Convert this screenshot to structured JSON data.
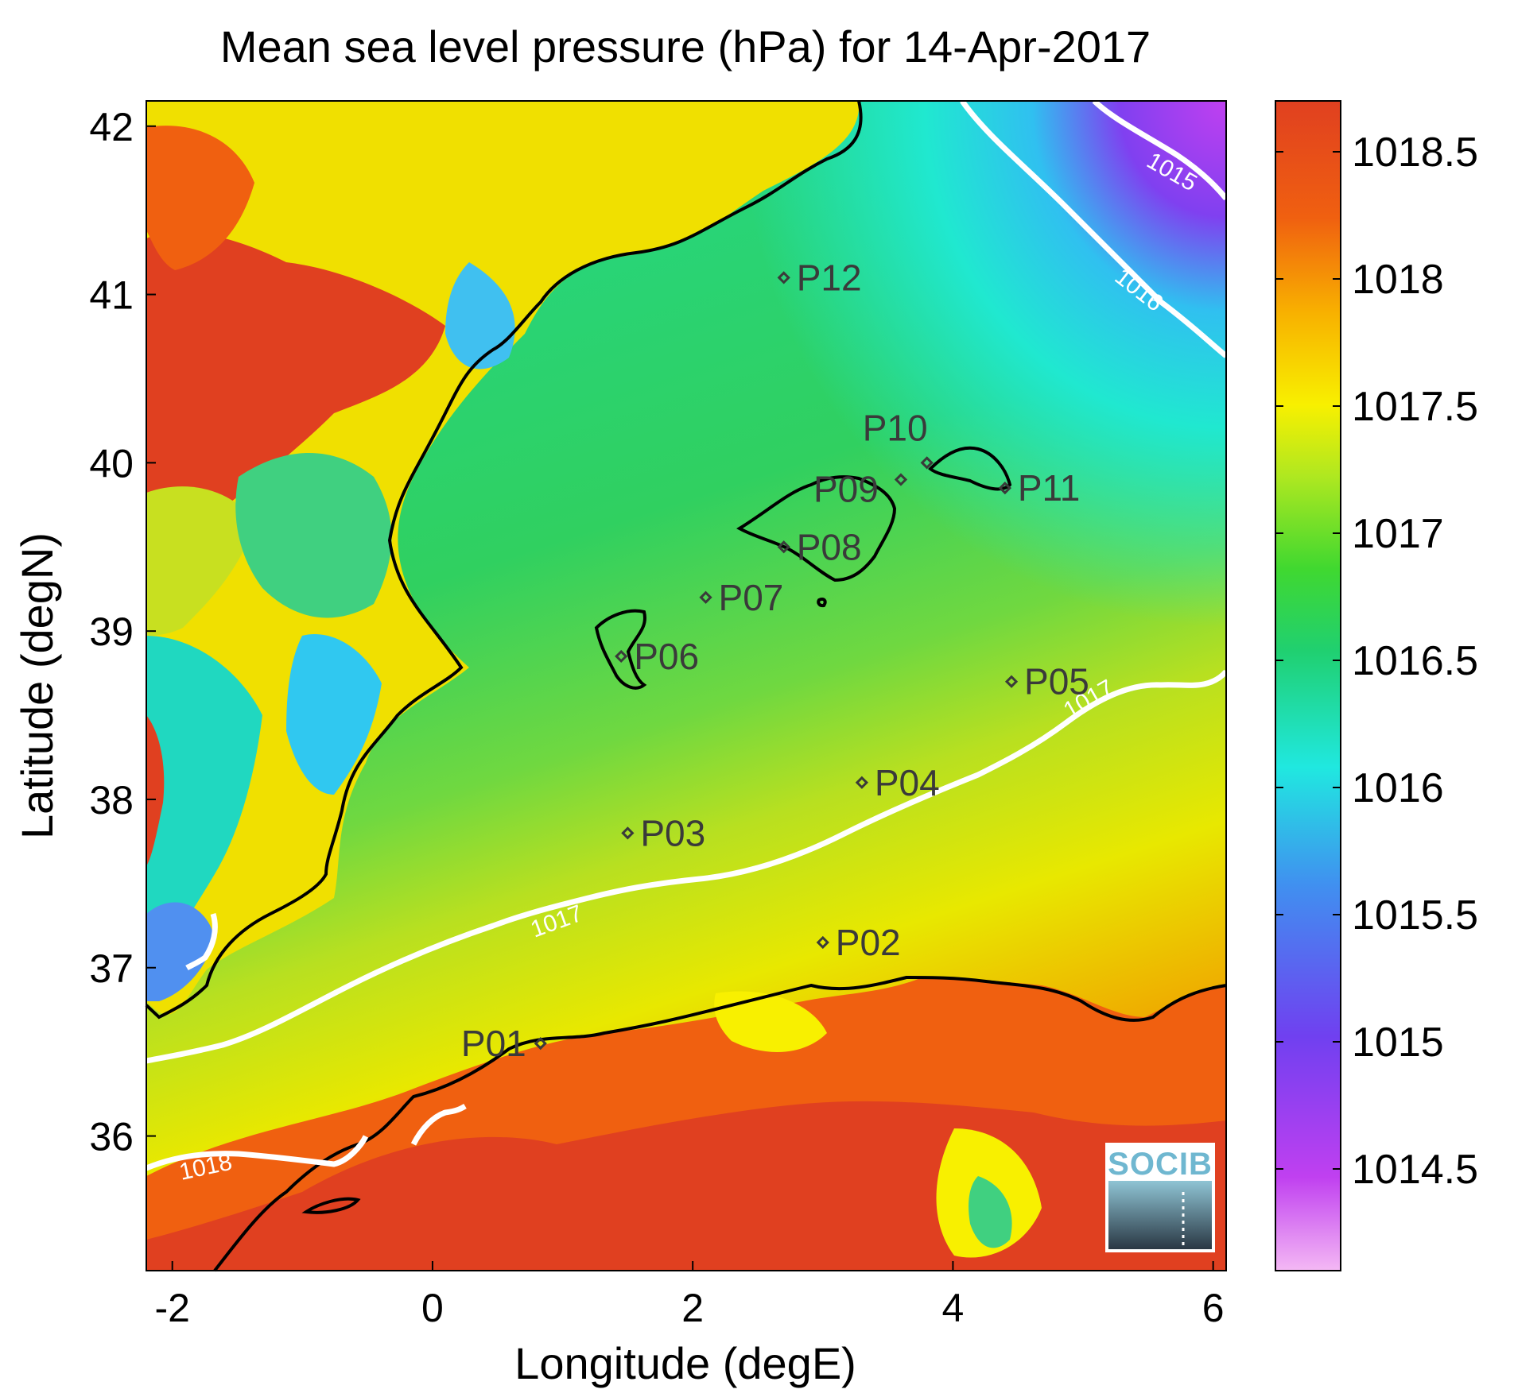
{
  "title": "Mean sea level pressure (hPa) for 14-Apr-2017",
  "xlabel": "Longitude (degE)",
  "ylabel": "Latitude (degN)",
  "x_ticks": [
    "-2",
    "0",
    "2",
    "4",
    "6"
  ],
  "y_ticks": [
    "36",
    "37",
    "38",
    "39",
    "40",
    "41",
    "42"
  ],
  "colorbar": {
    "label_ticks": [
      "1014.5",
      "1015",
      "1015.5",
      "1016",
      "1016.5",
      "1017",
      "1017.5",
      "1018",
      "1018.5"
    ],
    "range": [
      1014.1,
      1018.7
    ],
    "colors": [
      "#f0a8f0",
      "#c040f0",
      "#8040f0",
      "#4080f0",
      "#20e8e0",
      "#20d860",
      "#a0e820",
      "#f8f000",
      "#f8a000",
      "#f05010",
      "#e04020"
    ]
  },
  "logo_text": "SOCIB",
  "chart_data": {
    "type": "map",
    "xlim": [
      -2.2,
      6.1
    ],
    "ylim": [
      35.2,
      42.15
    ],
    "stations": [
      {
        "name": "P01",
        "lon": 0.83,
        "lat": 36.55
      },
      {
        "name": "P02",
        "lon": 3.0,
        "lat": 37.15
      },
      {
        "name": "P03",
        "lon": 1.5,
        "lat": 37.8
      },
      {
        "name": "P04",
        "lon": 3.3,
        "lat": 38.1
      },
      {
        "name": "P05",
        "lon": 4.45,
        "lat": 38.7
      },
      {
        "name": "P06",
        "lon": 1.45,
        "lat": 38.85
      },
      {
        "name": "P07",
        "lon": 2.1,
        "lat": 39.2
      },
      {
        "name": "P08",
        "lon": 2.7,
        "lat": 39.5
      },
      {
        "name": "P09",
        "lon": 3.6,
        "lat": 39.9
      },
      {
        "name": "P10",
        "lon": 3.8,
        "lat": 40.0
      },
      {
        "name": "P11",
        "lon": 4.4,
        "lat": 39.85
      },
      {
        "name": "P12",
        "lon": 2.7,
        "lat": 41.1
      }
    ],
    "contours": [
      {
        "level": "1015"
      },
      {
        "level": "1016"
      },
      {
        "level": "1017"
      },
      {
        "level": "1017"
      },
      {
        "level": "1018"
      }
    ]
  }
}
